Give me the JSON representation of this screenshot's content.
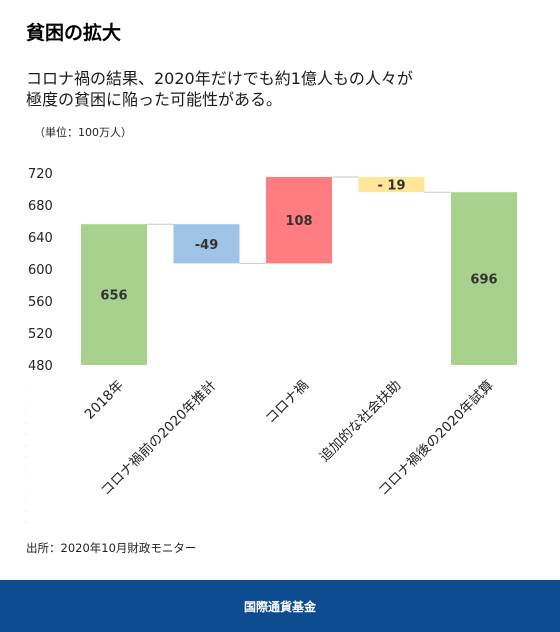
{
  "title": "貧困の拡大",
  "subtitle": [
    "コロナ禍の結果、2020年だけでも約1億人もの人々が",
    "極度の貧困に陥った可能性がある。"
  ],
  "unit_label": "（単位：100万人）",
  "source": "出所：2020年10月財政モニター",
  "footer": {
    "org": "国際通貨基金"
  },
  "colors": {
    "total": "#a9d18e",
    "decrease": "#9dc3e6",
    "increase": "#ff7c80",
    "support": "#ffe699",
    "footer": "#0e4c92",
    "connector": "#c8c8c8"
  },
  "chart_data": {
    "type": "bar",
    "subtype": "waterfall",
    "ylim": [
      480,
      720
    ],
    "yticks": [
      480,
      520,
      560,
      600,
      640,
      680,
      720
    ],
    "grid": false,
    "legend": "none",
    "bars": [
      {
        "category": "2018年",
        "kind": "total",
        "start": 0,
        "end": 656,
        "label": "656"
      },
      {
        "category": "コロナ禍前の2020年推計",
        "kind": "decrease",
        "start": 656,
        "end": 607,
        "label": "-49"
      },
      {
        "category": "コロナ禍",
        "kind": "increase",
        "start": 607,
        "end": 715,
        "label": "108"
      },
      {
        "category": "追加的な社会扶助",
        "kind": "support",
        "start": 715,
        "end": 696,
        "label": "- 19"
      },
      {
        "category": "コロナ禍後の2020年試算",
        "kind": "total",
        "start": 0,
        "end": 696,
        "label": "696"
      }
    ]
  }
}
